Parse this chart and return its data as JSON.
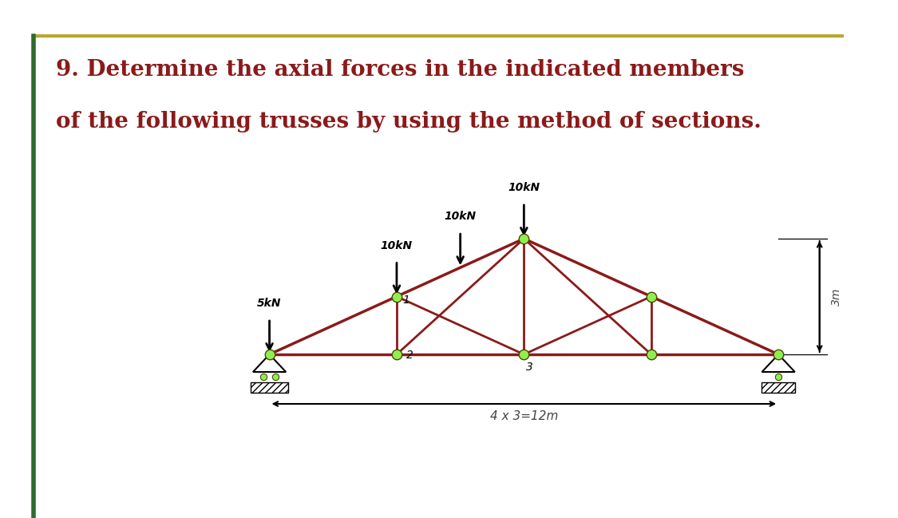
{
  "title_line1": "9. Determine the axial forces in the indicated members",
  "title_line2": "of the following trusses by using the method of sections.",
  "title_color": "#8B1A1A",
  "title_fontsize": 20,
  "bg_color": "#FFFFFF",
  "border_top_color": "#B8A830",
  "border_left_color": "#2E6B2E",
  "truss_color": "#8B1A1A",
  "node_color": "#90EE50",
  "node_edge_color": "#4a4a00",
  "dim_label": "4 x 3=12m",
  "height_label": "3m"
}
